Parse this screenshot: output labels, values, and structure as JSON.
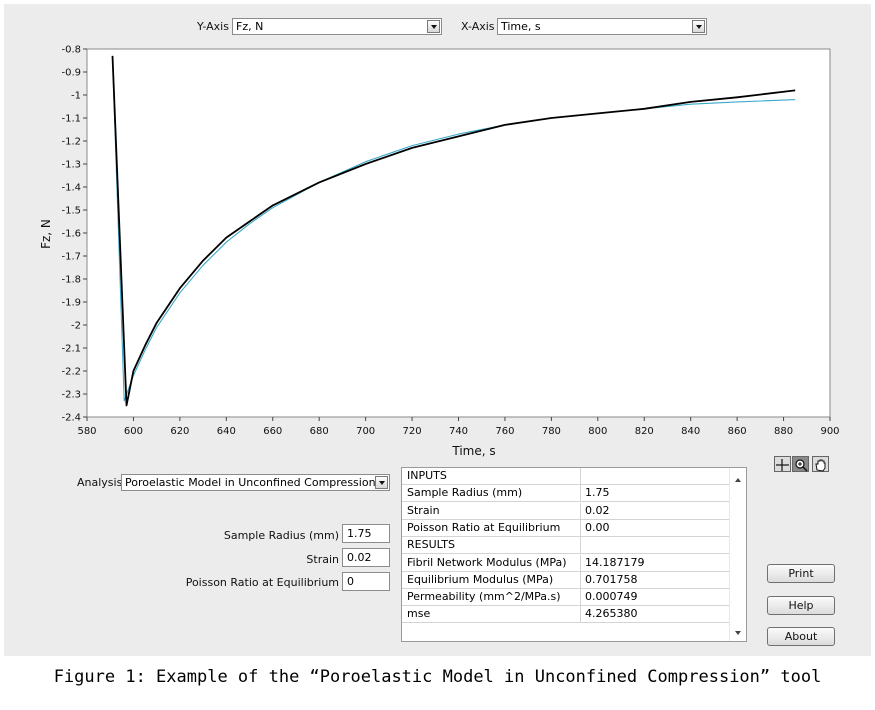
{
  "selectors": {
    "y_axis_label": "Y-Axis",
    "y_axis_value": "Fz, N",
    "x_axis_label": "X-Axis",
    "x_axis_value": "Time, s"
  },
  "chart_data": {
    "type": "line",
    "xlabel": "Time, s",
    "ylabel": "Fz, N",
    "xlim": [
      580,
      900
    ],
    "ylim": [
      -2.4,
      -0.8
    ],
    "xticks": [
      "580",
      "600",
      "620",
      "640",
      "660",
      "680",
      "700",
      "720",
      "740",
      "760",
      "780",
      "800",
      "820",
      "840",
      "860",
      "880",
      "900"
    ],
    "yticks": [
      "-0.8",
      "-0.9",
      "-1",
      "-1.1",
      "-1.2",
      "-1.3",
      "-1.4",
      "-1.5",
      "-1.6",
      "-1.7",
      "-1.8",
      "-1.9",
      "-2",
      "-2.1",
      "-2.2",
      "-2.3",
      "-2.4"
    ],
    "grid": false,
    "series": [
      {
        "color": "#000000",
        "x": [
          591,
          597,
          600,
          605,
          610,
          620,
          630,
          640,
          650,
          660,
          680,
          700,
          720,
          740,
          760,
          780,
          800,
          820,
          840,
          860,
          885
        ],
        "y": [
          -0.83,
          -2.35,
          -2.2,
          -2.09,
          -1.99,
          -1.84,
          -1.72,
          -1.62,
          -1.55,
          -1.48,
          -1.38,
          -1.3,
          -1.23,
          -1.18,
          -1.13,
          -1.1,
          -1.08,
          -1.06,
          -1.03,
          -1.01,
          -0.98
        ]
      },
      {
        "color": "#3aa8c8",
        "x": [
          591,
          596,
          600,
          605,
          610,
          620,
          630,
          640,
          650,
          660,
          680,
          700,
          720,
          740,
          760,
          780,
          800,
          820,
          840,
          860,
          885
        ],
        "y": [
          -0.83,
          -2.33,
          -2.22,
          -2.11,
          -2.01,
          -1.86,
          -1.74,
          -1.64,
          -1.56,
          -1.49,
          -1.38,
          -1.29,
          -1.22,
          -1.17,
          -1.13,
          -1.1,
          -1.08,
          -1.06,
          -1.04,
          -1.03,
          -1.02
        ]
      }
    ]
  },
  "tool_icons": [
    "crosshair-icon",
    "zoom-icon",
    "pan-hand-icon"
  ],
  "analysis": {
    "label": "Analysis",
    "value": "Poroelastic Model in Unconfined Compression"
  },
  "inputs": [
    {
      "label": "Sample Radius (mm)",
      "value": "1.75"
    },
    {
      "label": "Strain",
      "value": "0.02"
    },
    {
      "label": "Poisson Ratio at Equilibrium",
      "value": "0"
    }
  ],
  "results_table": {
    "rows": [
      [
        "INPUTS",
        ""
      ],
      [
        "Sample Radius (mm)",
        "1.75"
      ],
      [
        "Strain",
        "0.02"
      ],
      [
        "Poisson Ratio at Equilibrium",
        "0.00"
      ],
      [
        "RESULTS",
        ""
      ],
      [
        "Fibril Network Modulus (MPa)",
        "14.187179"
      ],
      [
        "Equilibrium Modulus (MPa)",
        "0.701758"
      ],
      [
        "Permeability (mm^2/MPa.s)",
        "0.000749"
      ],
      [
        "mse",
        "4.265380"
      ]
    ]
  },
  "buttons": {
    "print": "Print",
    "help": "Help",
    "about": "About"
  },
  "caption": "Figure 1: Example of the “Poroelastic Model in Unconfined Compression” tool"
}
